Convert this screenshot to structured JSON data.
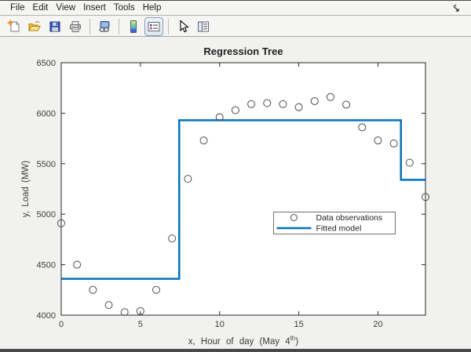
{
  "menubar": {
    "items": [
      "File",
      "Edit",
      "View",
      "Insert",
      "Tools",
      "Help"
    ]
  },
  "window_controls": {
    "dock_icon": "dock-figure-arrow"
  },
  "toolbar": {
    "icons": [
      "new-figure-icon",
      "open-folder-icon",
      "save-floppy-icon",
      "printer-icon",
      "link-plot-icon",
      "colorbar-icon",
      "legend-icon",
      "cursor-arrow-icon",
      "property-inspector-icon"
    ],
    "pressed_button": "insert-legend"
  },
  "chart_data": {
    "type": "scatter",
    "title": "Regression Tree",
    "xlabel": {
      "main": "x,  Hour of day (May 4",
      "sup": "th",
      "end": ")"
    },
    "ylabel": "y, Load (MW)",
    "xlim": [
      0,
      23
    ],
    "ylim": [
      4000,
      6500
    ],
    "xticks": [
      0,
      5,
      10,
      15,
      20
    ],
    "yticks": [
      4000,
      4500,
      5000,
      5500,
      6000,
      6500
    ],
    "grid": false,
    "legend": {
      "position": "inside-lower-right",
      "entries": [
        {
          "label": "Data observations",
          "swatch": "circle"
        },
        {
          "label": "Fitted model",
          "swatch": "line"
        }
      ]
    },
    "series": [
      {
        "name": "Data observations",
        "type": "scatter",
        "marker": "circle",
        "color": "#4d4d4d",
        "x": [
          0,
          1,
          2,
          3,
          4,
          5,
          6,
          7,
          8,
          9,
          10,
          11,
          12,
          13,
          14,
          15,
          16,
          17,
          18,
          19,
          20,
          21,
          22,
          23
        ],
        "y": [
          4910,
          4500,
          4250,
          4100,
          4030,
          4040,
          4250,
          4760,
          5350,
          5730,
          5960,
          6030,
          6090,
          6100,
          6090,
          6060,
          6120,
          6160,
          6085,
          5860,
          5730,
          5700,
          5510,
          5170
        ]
      },
      {
        "name": "Fitted model",
        "type": "line",
        "color": "#0072bd",
        "x": [
          0,
          7.45,
          7.45,
          21.45,
          21.45,
          23
        ],
        "y": [
          4360,
          4360,
          5930,
          5930,
          5340,
          5340
        ]
      }
    ]
  },
  "colors": {
    "accent_blue": "#0072bd",
    "axis": "#262626",
    "tick_label": "#3d3d3d",
    "figure_bg": "#f1f1ef",
    "plot_bg": "#ffffff",
    "legend_border": "#707070"
  }
}
